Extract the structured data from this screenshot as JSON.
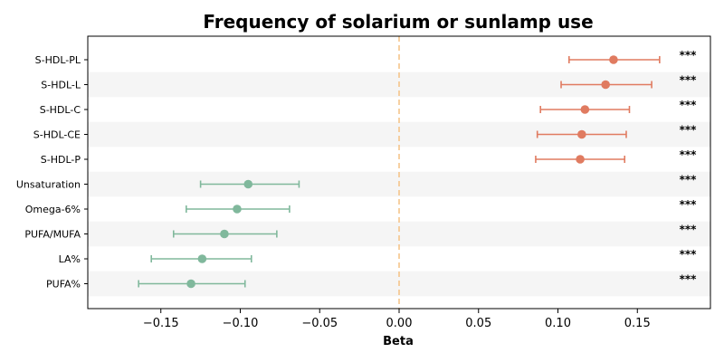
{
  "chart_data": {
    "type": "forest",
    "title": "Frequency of solarium or sunlamp use",
    "xlabel": "Beta",
    "xlim": [
      -0.196,
      0.196
    ],
    "xticks": [
      -0.15,
      -0.1,
      -0.05,
      0.0,
      0.05,
      0.1,
      0.15
    ],
    "xtick_labels": [
      "−0.15",
      "−0.10",
      "−0.05",
      "0.00",
      "0.05",
      "0.10",
      "0.15"
    ],
    "reference_line": 0.0,
    "reference_line_color": "#f5c48a",
    "stripe_color": "#f5f5f5",
    "positive_color": "#e07b60",
    "negative_color": "#80b89c",
    "rows": [
      {
        "label": "S-HDL-PL",
        "beta": 0.135,
        "ci_low": 0.107,
        "ci_high": 0.164,
        "sig": "***"
      },
      {
        "label": "S-HDL-L",
        "beta": 0.13,
        "ci_low": 0.102,
        "ci_high": 0.159,
        "sig": "***"
      },
      {
        "label": "S-HDL-C",
        "beta": 0.117,
        "ci_low": 0.089,
        "ci_high": 0.145,
        "sig": "***"
      },
      {
        "label": "S-HDL-CE",
        "beta": 0.115,
        "ci_low": 0.087,
        "ci_high": 0.143,
        "sig": "***"
      },
      {
        "label": "S-HDL-P",
        "beta": 0.114,
        "ci_low": 0.086,
        "ci_high": 0.142,
        "sig": "***"
      },
      {
        "label": "Unsaturation",
        "beta": -0.095,
        "ci_low": -0.125,
        "ci_high": -0.063,
        "sig": "***"
      },
      {
        "label": "Omega-6%",
        "beta": -0.102,
        "ci_low": -0.134,
        "ci_high": -0.069,
        "sig": "***"
      },
      {
        "label": "PUFA/MUFA",
        "beta": -0.11,
        "ci_low": -0.142,
        "ci_high": -0.077,
        "sig": "***"
      },
      {
        "label": "LA%",
        "beta": -0.124,
        "ci_low": -0.156,
        "ci_high": -0.093,
        "sig": "***"
      },
      {
        "label": "PUFA%",
        "beta": -0.131,
        "ci_low": -0.164,
        "ci_high": -0.097,
        "sig": "***"
      }
    ]
  }
}
